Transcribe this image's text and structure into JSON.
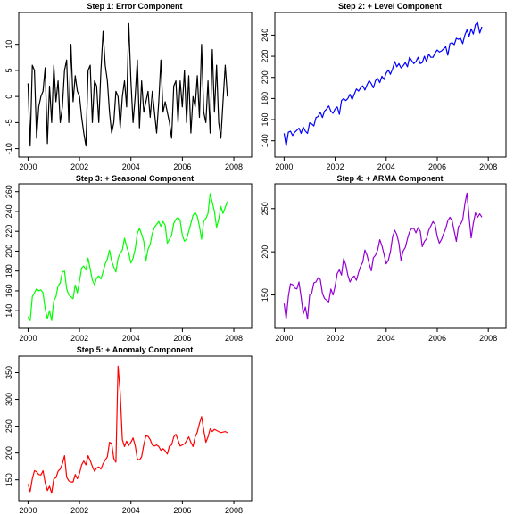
{
  "chart_data": [
    {
      "type": "line",
      "title": "Step 1: Error Component",
      "color": "#000000",
      "xlim": [
        2000,
        2008.33
      ],
      "ylim": [
        -10.5,
        15
      ],
      "xticks": [
        2000,
        2002,
        2004,
        2006,
        2008
      ],
      "yticks": [
        -10,
        -5,
        0,
        5,
        10
      ],
      "start": 2000.0,
      "step": 0.0833,
      "values": [
        2.5,
        -9.5,
        6,
        5,
        -8,
        -2,
        0,
        1,
        5.5,
        -9,
        2,
        -5,
        6,
        -1,
        3,
        -5,
        -2,
        5,
        7,
        -5,
        10,
        -1,
        4,
        1,
        0,
        -4,
        -7,
        -9.5,
        5,
        6,
        -5,
        3,
        2,
        -5,
        5,
        12.5,
        6,
        3,
        -3,
        -7,
        -5,
        1,
        0,
        -6,
        0,
        3,
        -2,
        14,
        3,
        -5,
        0,
        7,
        -6,
        3,
        -3,
        -1,
        1,
        -4,
        1,
        -3,
        -7,
        -1,
        7,
        -3,
        -1,
        -3,
        -5,
        -8,
        2,
        3,
        -5,
        3,
        -2,
        5,
        -5,
        4,
        -7,
        0,
        -2,
        4,
        -4,
        10,
        -3,
        -5,
        3,
        -7,
        9,
        -3,
        6,
        -5,
        -8,
        -1,
        6,
        0
      ],
      "x_tick_labels": [
        "2000",
        "2002",
        "2004",
        "2006",
        "2008"
      ],
      "y_tick_labels": [
        "-10",
        "-5",
        "0",
        "5",
        "10"
      ]
    },
    {
      "type": "line",
      "title": "Step 2: + Level Component",
      "color": "#0000ff",
      "xlim": [
        2000,
        2008.33
      ],
      "ylim": [
        130,
        256
      ],
      "xticks": [
        2000,
        2002,
        2004,
        2006,
        2008
      ],
      "yticks": [
        140,
        160,
        180,
        200,
        220,
        240
      ],
      "start": 2000.0,
      "step": 0.0833,
      "values": [
        147,
        135,
        148,
        149,
        145,
        148,
        150,
        152,
        147,
        153,
        149,
        147,
        157,
        156,
        154,
        162,
        163,
        167,
        162,
        168,
        170,
        173,
        168,
        166,
        170,
        172,
        165,
        178,
        180,
        178,
        180,
        184,
        179,
        184,
        189,
        187,
        190,
        192,
        188,
        193,
        197,
        194,
        190,
        197,
        199,
        195,
        201,
        198,
        204,
        207,
        203,
        208,
        215,
        210,
        213,
        209,
        211,
        214,
        210,
        219,
        216,
        213,
        215,
        219,
        213,
        214,
        220,
        215,
        222,
        219,
        219,
        223,
        226,
        224,
        225,
        227,
        229,
        221,
        232,
        233,
        231,
        237,
        236,
        237,
        232,
        240,
        245,
        239,
        246,
        241,
        250,
        252,
        242,
        248
      ],
      "x_tick_labels": [
        "2000",
        "2002",
        "2004",
        "2006",
        "2008"
      ],
      "y_tick_labels": [
        "140",
        "160",
        "180",
        "200",
        "220",
        "240"
      ]
    },
    {
      "type": "line",
      "title": "Step 3: + Seasonal Component",
      "color": "#00ff00",
      "xlim": [
        2000,
        2008.33
      ],
      "ylim": [
        128,
        262
      ],
      "xticks": [
        2000,
        2002,
        2004,
        2006,
        2008
      ],
      "yticks": [
        140,
        160,
        180,
        200,
        220,
        240,
        260
      ],
      "start": 2000.0,
      "step": 0.0833,
      "values": [
        134,
        130,
        154,
        158,
        162,
        160,
        161,
        158,
        142,
        132,
        140,
        130,
        150,
        154,
        165,
        168,
        179,
        180,
        162,
        156,
        154,
        152,
        166,
        158,
        170,
        183,
        185,
        181,
        193,
        182,
        171,
        166,
        173,
        175,
        172,
        179,
        187,
        192,
        201,
        190,
        184,
        179,
        193,
        198,
        201,
        213,
        205,
        198,
        188,
        193,
        202,
        218,
        223,
        217,
        210,
        190,
        202,
        207,
        218,
        224,
        227,
        230,
        225,
        230,
        226,
        208,
        212,
        216,
        228,
        232,
        234,
        231,
        216,
        210,
        212,
        220,
        228,
        236,
        239,
        235,
        225,
        212,
        230,
        233,
        238,
        258,
        249,
        240,
        224,
        232,
        245,
        238,
        244,
        250
      ],
      "x_tick_labels": [
        "2000",
        "2002",
        "2004",
        "2006",
        "2008"
      ],
      "y_tick_labels": [
        "140",
        "160",
        "180",
        "200",
        "220",
        "240",
        "260"
      ]
    },
    {
      "type": "line",
      "title": "Step 4: + ARMA Component",
      "color": "#9400d3",
      "xlim": [
        2000,
        2008.33
      ],
      "ylim": [
        118,
        272
      ],
      "xticks": [
        2000,
        2002,
        2004,
        2006,
        2008
      ],
      "yticks": [
        150,
        200,
        250
      ],
      "start": 2000.0,
      "step": 0.0833,
      "values": [
        140,
        122,
        148,
        163,
        162,
        158,
        157,
        165,
        148,
        128,
        136,
        122,
        150,
        152,
        164,
        165,
        170,
        168,
        152,
        146,
        144,
        142,
        157,
        150,
        160,
        175,
        179,
        173,
        192,
        185,
        173,
        165,
        170,
        172,
        167,
        176,
        183,
        188,
        202,
        196,
        186,
        178,
        193,
        196,
        202,
        214,
        207,
        197,
        186,
        190,
        200,
        217,
        225,
        220,
        210,
        190,
        201,
        205,
        215,
        223,
        227,
        227,
        222,
        228,
        224,
        206,
        212,
        215,
        225,
        230,
        235,
        232,
        218,
        210,
        214,
        221,
        227,
        236,
        240,
        236,
        224,
        212,
        229,
        232,
        237,
        255,
        268,
        240,
        216,
        233,
        245,
        240,
        244,
        240
      ],
      "x_tick_labels": [
        "2000",
        "2002",
        "2004",
        "2006",
        "2008"
      ],
      "y_tick_labels": [
        "150",
        "200",
        "250"
      ]
    },
    {
      "type": "line",
      "title": "Step 5: + Anomaly Component",
      "color": "#ff0000",
      "xlim": [
        2000,
        2008.33
      ],
      "ylim": [
        122,
        370
      ],
      "xticks": [
        2000,
        2002,
        2004,
        2006,
        2008
      ],
      "yticks": [
        150,
        200,
        250,
        300,
        350
      ],
      "start": 2000.0,
      "step": 0.0833,
      "values": [
        142,
        128,
        152,
        167,
        165,
        160,
        159,
        167,
        145,
        130,
        138,
        125,
        152,
        154,
        166,
        170,
        180,
        195,
        155,
        148,
        146,
        146,
        160,
        152,
        162,
        178,
        185,
        178,
        195,
        186,
        175,
        166,
        172,
        174,
        170,
        180,
        187,
        193,
        220,
        218,
        190,
        183,
        362,
        313,
        225,
        212,
        222,
        214,
        220,
        228,
        214,
        189,
        187,
        193,
        215,
        232,
        231,
        225,
        215,
        213,
        215,
        212,
        205,
        208,
        204,
        198,
        213,
        215,
        230,
        235,
        224,
        213,
        215,
        217,
        223,
        230,
        220,
        212,
        230,
        239,
        255,
        268,
        243,
        220,
        230,
        245,
        240,
        244,
        242,
        240,
        238,
        239,
        240,
        238
      ],
      "x_tick_labels": [
        "2000",
        "2002",
        "2004",
        "2006",
        "2008"
      ],
      "y_tick_labels": [
        "150",
        "200",
        "250",
        "300",
        "350"
      ]
    }
  ]
}
